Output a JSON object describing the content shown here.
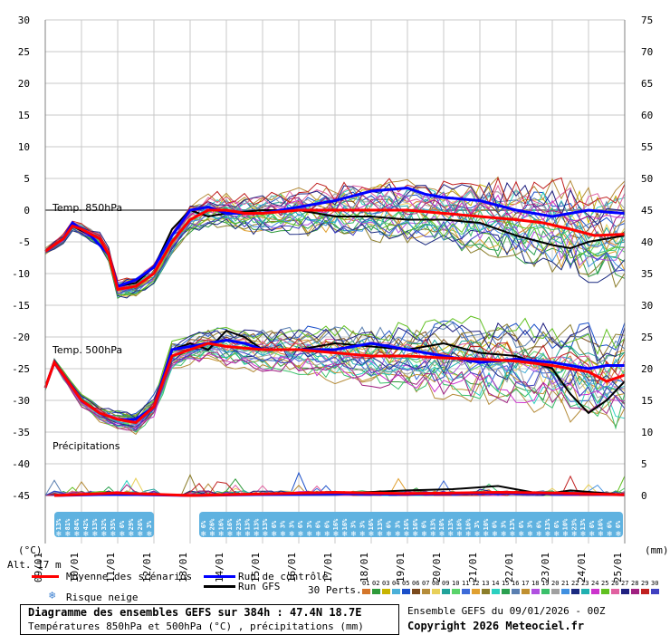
{
  "chart_data": {
    "type": "line",
    "title": "Diagramme des ensembles GEFS sur 384h : 47.4N 18.7E",
    "subtitle": "Températures 850hPa et 500hPa (°C) , précipitations (mm)",
    "left_axis": {
      "unit": "(°C)",
      "ylim": [
        -45,
        30
      ],
      "ticks": [
        30,
        25,
        20,
        15,
        10,
        5,
        0,
        -5,
        -10,
        -15,
        -20,
        -25,
        -30,
        -35,
        -40,
        -45
      ]
    },
    "right_axis": {
      "unit": "(mm)",
      "ylim": [
        0,
        75
      ],
      "ticks": [
        75,
        70,
        65,
        60,
        55,
        50,
        45,
        40,
        35,
        30,
        25,
        20,
        15,
        10,
        5,
        0
      ]
    },
    "x_hours": [
      0,
      384
    ],
    "dates": [
      "10/01",
      "11/01",
      "12/01",
      "13/01",
      "14/01",
      "15/01",
      "16/01",
      "17/01",
      "18/01",
      "19/01",
      "20/01",
      "21/01",
      "22/01",
      "23/01",
      "24/01",
      "25/01"
    ],
    "first_tick_label": "09/01",
    "panel_labels": {
      "t850": "Temp. 850hPa",
      "t500": "Temp. 500hPa",
      "precip": "Précipitations"
    },
    "series": [
      {
        "name": "Moyenne des scénarios",
        "color": "#ff0000",
        "t850": [
          [
            0,
            -6.5
          ],
          [
            12,
            -4.5
          ],
          [
            18,
            -2.5
          ],
          [
            24,
            -3
          ],
          [
            36,
            -4.5
          ],
          [
            42,
            -7
          ],
          [
            48,
            -12.5
          ],
          [
            60,
            -12
          ],
          [
            72,
            -10
          ],
          [
            84,
            -5
          ],
          [
            96,
            -1.5
          ],
          [
            108,
            0
          ],
          [
            120,
            0
          ],
          [
            132,
            -0.5
          ],
          [
            144,
            -0.5
          ],
          [
            168,
            0
          ],
          [
            192,
            0
          ],
          [
            216,
            0
          ],
          [
            240,
            0
          ],
          [
            264,
            -0.5
          ],
          [
            288,
            -1
          ],
          [
            312,
            -1.5
          ],
          [
            330,
            -2
          ],
          [
            348,
            -3
          ],
          [
            364,
            -4
          ],
          [
            384,
            -3.8
          ]
        ],
        "t500": [
          [
            0,
            -28
          ],
          [
            6,
            -24
          ],
          [
            12,
            -26
          ],
          [
            24,
            -30
          ],
          [
            36,
            -32
          ],
          [
            48,
            -33
          ],
          [
            60,
            -33.5
          ],
          [
            72,
            -31
          ],
          [
            84,
            -23
          ],
          [
            96,
            -22
          ],
          [
            108,
            -21
          ],
          [
            120,
            -21.5
          ],
          [
            144,
            -22
          ],
          [
            168,
            -22
          ],
          [
            192,
            -22.5
          ],
          [
            216,
            -23
          ],
          [
            240,
            -23
          ],
          [
            264,
            -23.3
          ],
          [
            288,
            -23.5
          ],
          [
            312,
            -23.8
          ],
          [
            336,
            -24.5
          ],
          [
            360,
            -25.5
          ],
          [
            372,
            -27
          ],
          [
            384,
            -26
          ]
        ],
        "precip": [
          [
            6,
            0
          ],
          [
            48,
            0.4
          ],
          [
            96,
            0
          ],
          [
            192,
            0.5
          ],
          [
            240,
            0.3
          ],
          [
            300,
            0.5
          ],
          [
            340,
            0.4
          ],
          [
            384,
            0.1
          ]
        ]
      },
      {
        "name": "Run de contrôle",
        "color": "#0000ff",
        "t850": [
          [
            0,
            -6.5
          ],
          [
            12,
            -4.5
          ],
          [
            18,
            -2
          ],
          [
            30,
            -4
          ],
          [
            42,
            -7
          ],
          [
            48,
            -12
          ],
          [
            60,
            -11
          ],
          [
            72,
            -9
          ],
          [
            84,
            -4
          ],
          [
            96,
            0
          ],
          [
            108,
            0.5
          ],
          [
            120,
            -0.5
          ],
          [
            144,
            -0.5
          ],
          [
            168,
            0.5
          ],
          [
            192,
            1.5
          ],
          [
            216,
            3
          ],
          [
            240,
            3.5
          ],
          [
            252,
            2.5
          ],
          [
            264,
            2
          ],
          [
            288,
            1.5
          ],
          [
            312,
            0
          ],
          [
            336,
            -1
          ],
          [
            360,
            0
          ],
          [
            372,
            -0.3
          ],
          [
            384,
            -0.5
          ]
        ],
        "t500": [
          [
            0,
            -28
          ],
          [
            6,
            -24
          ],
          [
            12,
            -26
          ],
          [
            24,
            -30
          ],
          [
            36,
            -32
          ],
          [
            48,
            -33
          ],
          [
            60,
            -33
          ],
          [
            72,
            -31
          ],
          [
            84,
            -22
          ],
          [
            96,
            -21.5
          ],
          [
            108,
            -21
          ],
          [
            120,
            -20.5
          ],
          [
            132,
            -21
          ],
          [
            144,
            -22
          ],
          [
            168,
            -22
          ],
          [
            192,
            -22
          ],
          [
            216,
            -21
          ],
          [
            240,
            -22
          ],
          [
            264,
            -23
          ],
          [
            288,
            -24
          ],
          [
            312,
            -23.5
          ],
          [
            336,
            -24
          ],
          [
            360,
            -25
          ],
          [
            372,
            -24.5
          ],
          [
            384,
            -24.5
          ]
        ],
        "precip": [
          [
            6,
            0
          ],
          [
            48,
            0.2
          ],
          [
            96,
            0
          ],
          [
            192,
            0.3
          ],
          [
            240,
            0.2
          ],
          [
            300,
            0.4
          ],
          [
            340,
            0.3
          ],
          [
            384,
            0.1
          ]
        ]
      },
      {
        "name": "Run GFS",
        "color": "#000000",
        "t850": [
          [
            0,
            -6.5
          ],
          [
            12,
            -4.5
          ],
          [
            18,
            -2.5
          ],
          [
            30,
            -4
          ],
          [
            42,
            -7
          ],
          [
            48,
            -12
          ],
          [
            60,
            -11.5
          ],
          [
            72,
            -9
          ],
          [
            84,
            -3
          ],
          [
            96,
            0
          ],
          [
            108,
            -1
          ],
          [
            120,
            -0.5
          ],
          [
            144,
            0
          ],
          [
            168,
            0
          ],
          [
            192,
            -1
          ],
          [
            216,
            -1
          ],
          [
            240,
            -1.5
          ],
          [
            264,
            -1.5
          ],
          [
            288,
            -2
          ],
          [
            312,
            -4
          ],
          [
            336,
            -5.5
          ],
          [
            348,
            -6
          ],
          [
            360,
            -5
          ],
          [
            372,
            -4.5
          ],
          [
            384,
            -4
          ]
        ],
        "t500": [
          [
            0,
            -28
          ],
          [
            6,
            -24
          ],
          [
            12,
            -26
          ],
          [
            24,
            -30
          ],
          [
            36,
            -32
          ],
          [
            48,
            -33
          ],
          [
            60,
            -33
          ],
          [
            72,
            -31
          ],
          [
            84,
            -22
          ],
          [
            96,
            -21
          ],
          [
            108,
            -22
          ],
          [
            120,
            -19
          ],
          [
            132,
            -20
          ],
          [
            144,
            -22
          ],
          [
            168,
            -22
          ],
          [
            192,
            -21
          ],
          [
            216,
            -21.5
          ],
          [
            240,
            -22
          ],
          [
            264,
            -21
          ],
          [
            288,
            -22.5
          ],
          [
            312,
            -23
          ],
          [
            336,
            -25
          ],
          [
            348,
            -29
          ],
          [
            360,
            -32
          ],
          [
            372,
            -30
          ],
          [
            384,
            -27
          ]
        ],
        "precip": [
          [
            6,
            0
          ],
          [
            48,
            0.2
          ],
          [
            96,
            0
          ],
          [
            192,
            0.3
          ],
          [
            240,
            0.8
          ],
          [
            270,
            1
          ],
          [
            300,
            1.5
          ],
          [
            330,
            0.2
          ],
          [
            348,
            0.8
          ],
          [
            384,
            0.1
          ]
        ]
      }
    ],
    "snow_risk": [
      {
        "from_h": 0,
        "to_h": 72,
        "percents": [
          "13%",
          "81%",
          "84%",
          "42%",
          "13%",
          "32%",
          "35%",
          "6%",
          "29%",
          "26%",
          "3%"
        ]
      },
      {
        "from_h": 96,
        "to_h": 384,
        "percents": [
          "6%",
          "26%",
          "16%",
          "16%",
          "23%",
          "13%",
          "13%",
          "13%",
          "6%",
          "3%",
          "3%",
          "6%",
          "3%",
          "6%",
          "6%",
          "16%",
          "16%",
          "3%",
          "3%",
          "16%",
          "13%",
          "6%",
          "3%",
          "16%",
          "16%",
          "6%",
          "13%",
          "10%",
          "13%",
          "16%",
          "16%",
          "3%",
          "10%",
          "6%",
          "3%",
          "13%",
          "6%",
          "3%",
          "6%",
          "13%",
          "6%",
          "10%",
          "23%",
          "13%",
          "6%",
          "16%",
          "6%",
          "6%"
        ]
      }
    ],
    "grid": true,
    "legend_position": "bottom"
  },
  "legend": {
    "mean_label": "Moyenne des scénarios",
    "control_label": "Run de contrôle",
    "gfs_label": "Run GFS",
    "snow_label": "Risque neige",
    "snow_icon": "snowflake-icon",
    "perts_label": "30 Perts.",
    "pert_numbers": [
      "01",
      "02",
      "03",
      "04",
      "05",
      "06",
      "07",
      "08",
      "09",
      "10",
      "11",
      "12",
      "13",
      "14",
      "15",
      "16",
      "17",
      "18",
      "19",
      "20",
      "21",
      "22",
      "23",
      "24",
      "25",
      "26",
      "27",
      "28",
      "29",
      "30"
    ],
    "pert_colors": [
      "#d4762a",
      "#2e9a3a",
      "#c8b400",
      "#4bb0d8",
      "#1a4fc9",
      "#7a4a1d",
      "#b58c3a",
      "#e8d05a",
      "#21a39a",
      "#5ad36a",
      "#3d6ad8",
      "#e0a030",
      "#8b7d2a",
      "#2bd0c0",
      "#2aa050",
      "#5a7fb0",
      "#c09030",
      "#b050e0",
      "#3ac06a",
      "#a0a0a0",
      "#4090e0",
      "#1a2a80",
      "#20b0b0",
      "#cc33cc",
      "#60c020",
      "#e060a0",
      "#202080",
      "#a02080",
      "#c02020",
      "#4040c0"
    ]
  },
  "footer": {
    "title": "Diagramme des ensembles GEFS sur 384h : 47.4N 18.7E",
    "subtitle": "Températures 850hPa et 500hPa (°C) , précipitations (mm)",
    "ensemble_info": "Ensemble GEFS du 09/01/2026 - 00Z",
    "copyright": "Copyright 2026 Meteociel.fr",
    "altitude": "Alt. 17 m",
    "unit_left": "(°C)",
    "unit_right": "(mm)"
  }
}
